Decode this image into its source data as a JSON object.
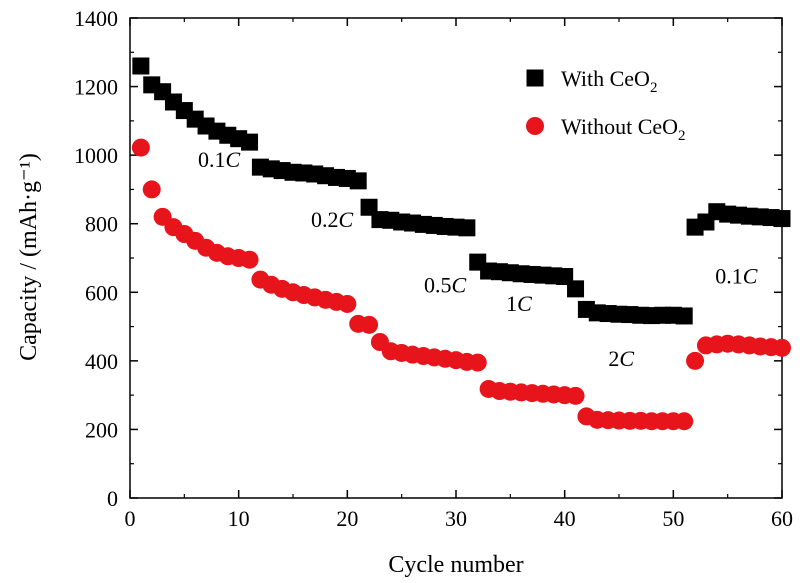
{
  "chart_data": {
    "type": "scatter",
    "xlabel": "Cycle number",
    "ylabel": "Capacity / (mAh·g⁻¹)",
    "xlim": [
      0,
      60
    ],
    "ylim": [
      0,
      1400
    ],
    "x_ticks": [
      "0",
      "10",
      "20",
      "30",
      "40",
      "50",
      "60"
    ],
    "y_ticks": [
      "0",
      "200",
      "400",
      "600",
      "800",
      "1000",
      "1200",
      "1400"
    ],
    "grid": false,
    "legend_position": "top-right",
    "series": [
      {
        "name": "With CeO2",
        "marker": "square",
        "color": "#000000",
        "x": [
          1,
          2,
          3,
          4,
          5,
          6,
          7,
          8,
          9,
          10,
          11,
          12,
          13,
          14,
          15,
          16,
          17,
          18,
          19,
          20,
          21,
          22,
          23,
          24,
          25,
          26,
          27,
          28,
          29,
          30,
          31,
          32,
          33,
          34,
          35,
          36,
          37,
          38,
          39,
          40,
          41,
          42,
          43,
          44,
          45,
          46,
          47,
          48,
          49,
          50,
          51,
          52,
          53,
          54,
          55,
          56,
          57,
          58,
          59,
          60
        ],
        "y": [
          1260,
          1205,
          1185,
          1155,
          1130,
          1105,
          1085,
          1070,
          1058,
          1048,
          1038,
          965,
          960,
          955,
          950,
          948,
          945,
          940,
          935,
          932,
          925,
          848,
          812,
          810,
          805,
          802,
          798,
          795,
          792,
          790,
          788,
          688,
          662,
          660,
          657,
          654,
          652,
          650,
          648,
          646,
          610,
          550,
          540,
          538,
          536,
          535,
          533,
          532,
          533,
          533,
          531,
          790,
          805,
          835,
          828,
          825,
          822,
          820,
          818,
          815
        ]
      },
      {
        "name": "Without CeO2",
        "marker": "circle",
        "color": "#e8141b",
        "x": [
          1,
          2,
          3,
          4,
          5,
          6,
          7,
          8,
          9,
          10,
          11,
          12,
          13,
          14,
          15,
          16,
          17,
          18,
          19,
          20,
          21,
          22,
          23,
          24,
          25,
          26,
          27,
          28,
          29,
          30,
          31,
          32,
          33,
          34,
          35,
          36,
          37,
          38,
          39,
          40,
          41,
          42,
          43,
          44,
          45,
          46,
          47,
          48,
          49,
          50,
          51,
          52,
          53,
          54,
          55,
          56,
          57,
          58,
          59,
          60
        ],
        "y": [
          1022,
          900,
          820,
          790,
          770,
          750,
          730,
          715,
          705,
          700,
          695,
          637,
          622,
          610,
          600,
          592,
          585,
          578,
          572,
          566,
          508,
          505,
          455,
          428,
          423,
          418,
          414,
          410,
          406,
          402,
          397,
          395,
          318,
          312,
          310,
          308,
          306,
          304,
          302,
          300,
          298,
          238,
          228,
          227,
          226,
          225,
          225,
          224,
          224,
          224,
          224,
          400,
          445,
          448,
          450,
          448,
          445,
          442,
          440,
          438
        ]
      }
    ],
    "annotations": [
      {
        "text": "0.1",
        "italic": "C",
        "x": 8.2,
        "y": 965
      },
      {
        "text": "0.2",
        "italic": "C",
        "x": 18.6,
        "y": 790
      },
      {
        "text": "0.5",
        "italic": "C",
        "x": 29.0,
        "y": 600
      },
      {
        "text": "1",
        "italic": "C",
        "x": 35.8,
        "y": 545
      },
      {
        "text": "2",
        "italic": "C",
        "x": 45.2,
        "y": 385
      },
      {
        "text": "0.1",
        "italic": "C",
        "x": 55.8,
        "y": 625
      }
    ]
  }
}
